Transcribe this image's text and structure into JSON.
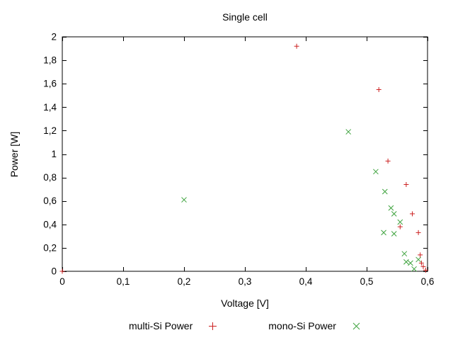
{
  "chart_data": {
    "type": "scatter",
    "title": "Single cell",
    "xlabel": "Voltage [V]",
    "ylabel": "Power [W]",
    "xlim": [
      0,
      0.6
    ],
    "ylim": [
      0,
      2
    ],
    "x_ticks": [
      0,
      0.1,
      0.2,
      0.3,
      0.4,
      0.5,
      0.6
    ],
    "x_tick_labels": [
      "0",
      "0,1",
      "0,2",
      "0,3",
      "0,4",
      "0,5",
      "0,6"
    ],
    "y_ticks": [
      0,
      0.2,
      0.4,
      0.6,
      0.8,
      1.0,
      1.2,
      1.4,
      1.6,
      1.8,
      2.0
    ],
    "y_tick_labels": [
      "0",
      "0,2",
      "0,4",
      "0,6",
      "0,8",
      "1",
      "1,2",
      "1,4",
      "1,6",
      "1,8",
      "2"
    ],
    "grid": false,
    "legend_position": "bottom-center",
    "axis_color": "#000000",
    "series": [
      {
        "name": "multi-Si Power",
        "marker": "plus",
        "color": "#cc2222",
        "points": [
          [
            0.0,
            0.0
          ],
          [
            0.385,
            1.92
          ],
          [
            0.52,
            1.55
          ],
          [
            0.535,
            0.94
          ],
          [
            0.555,
            0.38
          ],
          [
            0.565,
            0.74
          ],
          [
            0.575,
            0.49
          ],
          [
            0.585,
            0.33
          ],
          [
            0.588,
            0.14
          ],
          [
            0.59,
            0.07
          ],
          [
            0.593,
            0.04
          ],
          [
            0.597,
            0.01
          ]
        ]
      },
      {
        "name": "mono-Si Power",
        "marker": "x",
        "color": "#3fa33f",
        "points": [
          [
            0.2,
            0.61
          ],
          [
            0.47,
            1.19
          ],
          [
            0.515,
            0.85
          ],
          [
            0.53,
            0.68
          ],
          [
            0.54,
            0.54
          ],
          [
            0.545,
            0.49
          ],
          [
            0.528,
            0.33
          ],
          [
            0.545,
            0.32
          ],
          [
            0.555,
            0.42
          ],
          [
            0.562,
            0.15
          ],
          [
            0.565,
            0.08
          ],
          [
            0.572,
            0.07
          ],
          [
            0.578,
            0.02
          ],
          [
            0.585,
            0.1
          ]
        ]
      }
    ]
  }
}
